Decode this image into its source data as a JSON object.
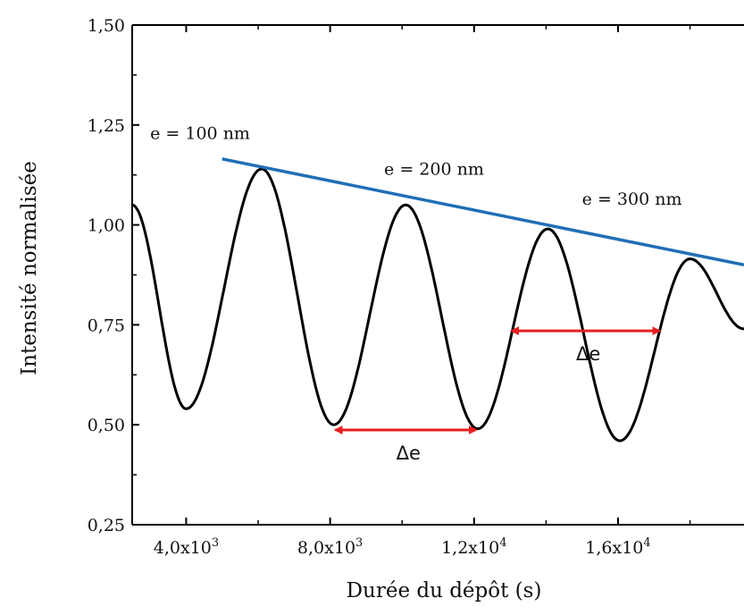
{
  "chart_data": {
    "type": "line",
    "title": "",
    "xlabel": "Durée du dépôt (s)",
    "ylabel": "Intensité normalisée",
    "xlim": [
      2500,
      19500
    ],
    "ylim": [
      0.25,
      1.5
    ],
    "grid": false,
    "x_ticks": [
      {
        "value": 4000,
        "mantissa": "4,0x10",
        "exp": "3"
      },
      {
        "value": 8000,
        "mantissa": "8,0x10",
        "exp": "3"
      },
      {
        "value": 12000,
        "mantissa": "1,2x10",
        "exp": "4"
      },
      {
        "value": 16000,
        "mantissa": "1,6x10",
        "exp": "4"
      }
    ],
    "y_ticks": [
      {
        "value": 0.25,
        "label": "0,25"
      },
      {
        "value": 0.5,
        "label": "0,50"
      },
      {
        "value": 0.75,
        "label": "0,75"
      },
      {
        "value": 1.0,
        "label": "1,00"
      },
      {
        "value": 1.25,
        "label": "1,25"
      },
      {
        "value": 1.5,
        "label": "1,50"
      }
    ],
    "series": [
      {
        "color": "#000000",
        "x": [
          2500,
          4000,
          6100,
          8100,
          10100,
          12100,
          14050,
          16050,
          18000,
          19500
        ],
        "y": [
          1.05,
          0.54,
          1.14,
          0.5,
          1.05,
          0.49,
          0.99,
          0.46,
          0.915,
          0.74
        ]
      }
    ],
    "envelope_line": {
      "color": "#1f6fb5",
      "x": [
        5000,
        19500
      ],
      "y": [
        1.165,
        0.9
      ]
    },
    "annotations": [
      {
        "text": "e = 100 nm",
        "x": 3000,
        "y": 1.215
      },
      {
        "text": "e = 200 nm",
        "x": 9500,
        "y": 1.125
      },
      {
        "text": "e = 300 nm",
        "x": 15000,
        "y": 1.05
      }
    ],
    "arrows": [
      {
        "label": "Δe",
        "x1": 8100,
        "x2": 12100,
        "y": 0.487,
        "color": "#e81e1e"
      },
      {
        "label": "Δe",
        "x1": 13000,
        "x2": 17200,
        "y": 0.735,
        "color": "#e81e1e"
      }
    ]
  }
}
